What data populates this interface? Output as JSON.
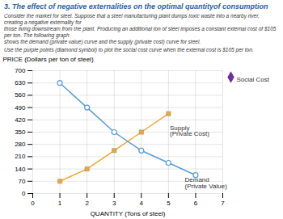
{
  "chart_data": {
    "type": "line",
    "title": "3. The effect of negative externalities on the optimal quantityof consumption",
    "subtitle": "Consider the market for steel. Suppose that a steel manufacturing plant dumps toxic waste into a nearby river, creating a negative externality for\nthose living downstream from the plant. Producing an additional ton of steel imposes a constant external cost of $105 per ton. The following graph\nshows the demand (private value) curve and the supply (private cost) curve for steel.",
    "instruction": "Use the purple points (diamond symbol) to plot the social cost curve when the external cost is $105 per ton.",
    "xlabel": "QUANTITY (Tons of steel)",
    "ylabel": "PRICE (Dollars per ton of steel)",
    "xlim": [
      0,
      7
    ],
    "ylim": [
      0,
      700
    ],
    "xticks": [
      0,
      1,
      2,
      3,
      4,
      5,
      6,
      7
    ],
    "yticks": [
      0,
      70,
      140,
      210,
      280,
      350,
      420,
      490,
      560,
      630,
      700
    ],
    "grid": true,
    "series": [
      {
        "name": "Supply (Private Cost)",
        "color": "#f0a832",
        "marker": "square",
        "x": [
          1,
          2,
          3,
          4,
          5
        ],
        "values": [
          70,
          140,
          245,
          350,
          455
        ]
      },
      {
        "name": "Demand (Private Value)",
        "color": "#5b9bd5",
        "marker": "open_circle",
        "x": [
          1,
          2,
          3,
          4,
          5,
          6
        ],
        "values": [
          630,
          490,
          350,
          245,
          175,
          105
        ]
      }
    ],
    "annotations": [
      {
        "text": "Supply\n(Private Cost)",
        "x": 5.05,
        "y": 390
      },
      {
        "text": "Demand\n(Private Value)",
        "x": 5.6,
        "y": 95
      },
      {
        "text": "Social Cost",
        "marker": "diamond",
        "color": "#7030a0"
      }
    ]
  }
}
